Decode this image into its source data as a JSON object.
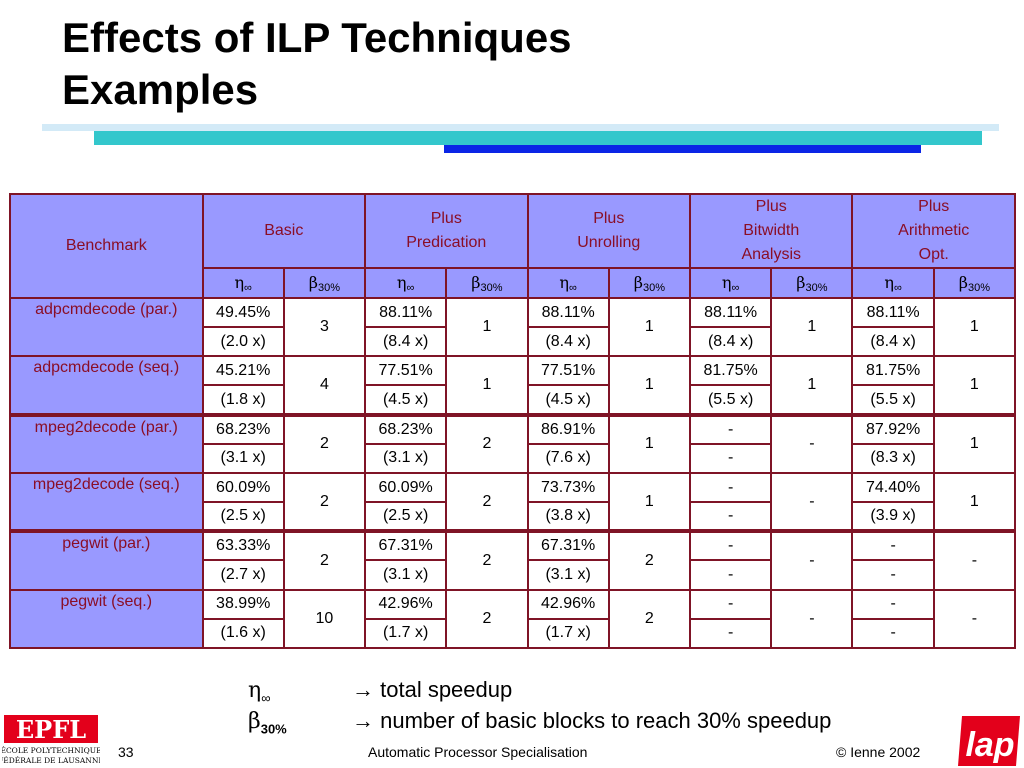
{
  "slide": {
    "title_line1": "Effects of ILP Techniques",
    "title_line2": "Examples"
  },
  "table": {
    "header": {
      "benchmark": "Benchmark",
      "groups": [
        {
          "line1": "Basic",
          "line2": "",
          "line3": ""
        },
        {
          "line1": "Plus",
          "line2": "Predication",
          "line3": ""
        },
        {
          "line1": "Plus",
          "line2": "Unrolling",
          "line3": ""
        },
        {
          "line1": "Plus",
          "line2": "Bitwidth",
          "line3": "Analysis"
        },
        {
          "line1": "Plus",
          "line2": "Arithmetic",
          "line3": "Opt."
        }
      ],
      "eta": "η",
      "eta_sub": "∞",
      "beta": "β",
      "beta_sub": "30%"
    },
    "rows": [
      {
        "name": "adpcmdecode (par.)",
        "cells": [
          {
            "eta": "49.45%",
            "x": "(2.0 x)",
            "beta": "3"
          },
          {
            "eta": "88.11%",
            "x": "(8.4 x)",
            "beta": "1"
          },
          {
            "eta": "88.11%",
            "x": "(8.4 x)",
            "beta": "1"
          },
          {
            "eta": "88.11%",
            "x": "(8.4 x)",
            "beta": "1"
          },
          {
            "eta": "88.11%",
            "x": "(8.4 x)",
            "beta": "1"
          }
        ]
      },
      {
        "name": "adpcmdecode (seq.)",
        "cells": [
          {
            "eta": "45.21%",
            "x": "(1.8 x)",
            "beta": "4"
          },
          {
            "eta": "77.51%",
            "x": "(4.5 x)",
            "beta": "1"
          },
          {
            "eta": "77.51%",
            "x": "(4.5 x)",
            "beta": "1"
          },
          {
            "eta": "81.75%",
            "x": "(5.5 x)",
            "beta": "1"
          },
          {
            "eta": "81.75%",
            "x": "(5.5 x)",
            "beta": "1"
          }
        ]
      },
      {
        "name": "mpeg2decode (par.)",
        "cells": [
          {
            "eta": "68.23%",
            "x": "(3.1 x)",
            "beta": "2"
          },
          {
            "eta": "68.23%",
            "x": "(3.1 x)",
            "beta": "2"
          },
          {
            "eta": "86.91%",
            "x": "(7.6 x)",
            "beta": "1"
          },
          {
            "eta": "-",
            "x": "-",
            "beta": "-"
          },
          {
            "eta": "87.92%",
            "x": "(8.3 x)",
            "beta": "1"
          }
        ]
      },
      {
        "name": "mpeg2decode (seq.)",
        "cells": [
          {
            "eta": "60.09%",
            "x": "(2.5 x)",
            "beta": "2"
          },
          {
            "eta": "60.09%",
            "x": "(2.5 x)",
            "beta": "2"
          },
          {
            "eta": "73.73%",
            "x": "(3.8 x)",
            "beta": "1"
          },
          {
            "eta": "-",
            "x": "-",
            "beta": "-"
          },
          {
            "eta": "74.40%",
            "x": "(3.9 x)",
            "beta": "1"
          }
        ]
      },
      {
        "name": "pegwit (par.)",
        "cells": [
          {
            "eta": "63.33%",
            "x": "(2.7 x)",
            "beta": "2"
          },
          {
            "eta": "67.31%",
            "x": "(3.1 x)",
            "beta": "2"
          },
          {
            "eta": "67.31%",
            "x": "(3.1 x)",
            "beta": "2"
          },
          {
            "eta": "-",
            "x": "-",
            "beta": "-"
          },
          {
            "eta": "-",
            "x": "-",
            "beta": "-"
          }
        ]
      },
      {
        "name": "pegwit (seq.)",
        "cells": [
          {
            "eta": "38.99%",
            "x": "(1.6 x)",
            "beta": "10"
          },
          {
            "eta": "42.96%",
            "x": "(1.7 x)",
            "beta": "2"
          },
          {
            "eta": "42.96%",
            "x": "(1.7 x)",
            "beta": "2"
          },
          {
            "eta": "-",
            "x": "-",
            "beta": "-"
          },
          {
            "eta": "-",
            "x": "-",
            "beta": "-"
          }
        ]
      }
    ]
  },
  "legend": {
    "items": [
      {
        "symbol": "η",
        "sub": "∞",
        "arrow": "→",
        "text": "total speedup"
      },
      {
        "symbol": "β",
        "sub": "30%",
        "arrow": "→",
        "text": "number of basic blocks to reach 30% speedup"
      }
    ]
  },
  "footer": {
    "page_number": "33",
    "course": "Automatic Processor Specialisation",
    "copyright": "© Ienne 2002",
    "epfl_logo_text": "EPFL",
    "epfl_line1": "ÉCOLE POLYTECHNIQUE",
    "epfl_line2": "FÉDÉRALE DE LAUSANNE",
    "lap_logo_text": "lap"
  },
  "colors": {
    "header_bg": "#9999ff",
    "header_text": "#8a0e26",
    "grid": "#7f1426",
    "bar_light": "#d3eaf7",
    "bar_teal": "#33c7cc",
    "bar_blue": "#0a25e6",
    "logo_red": "#e3001b"
  }
}
